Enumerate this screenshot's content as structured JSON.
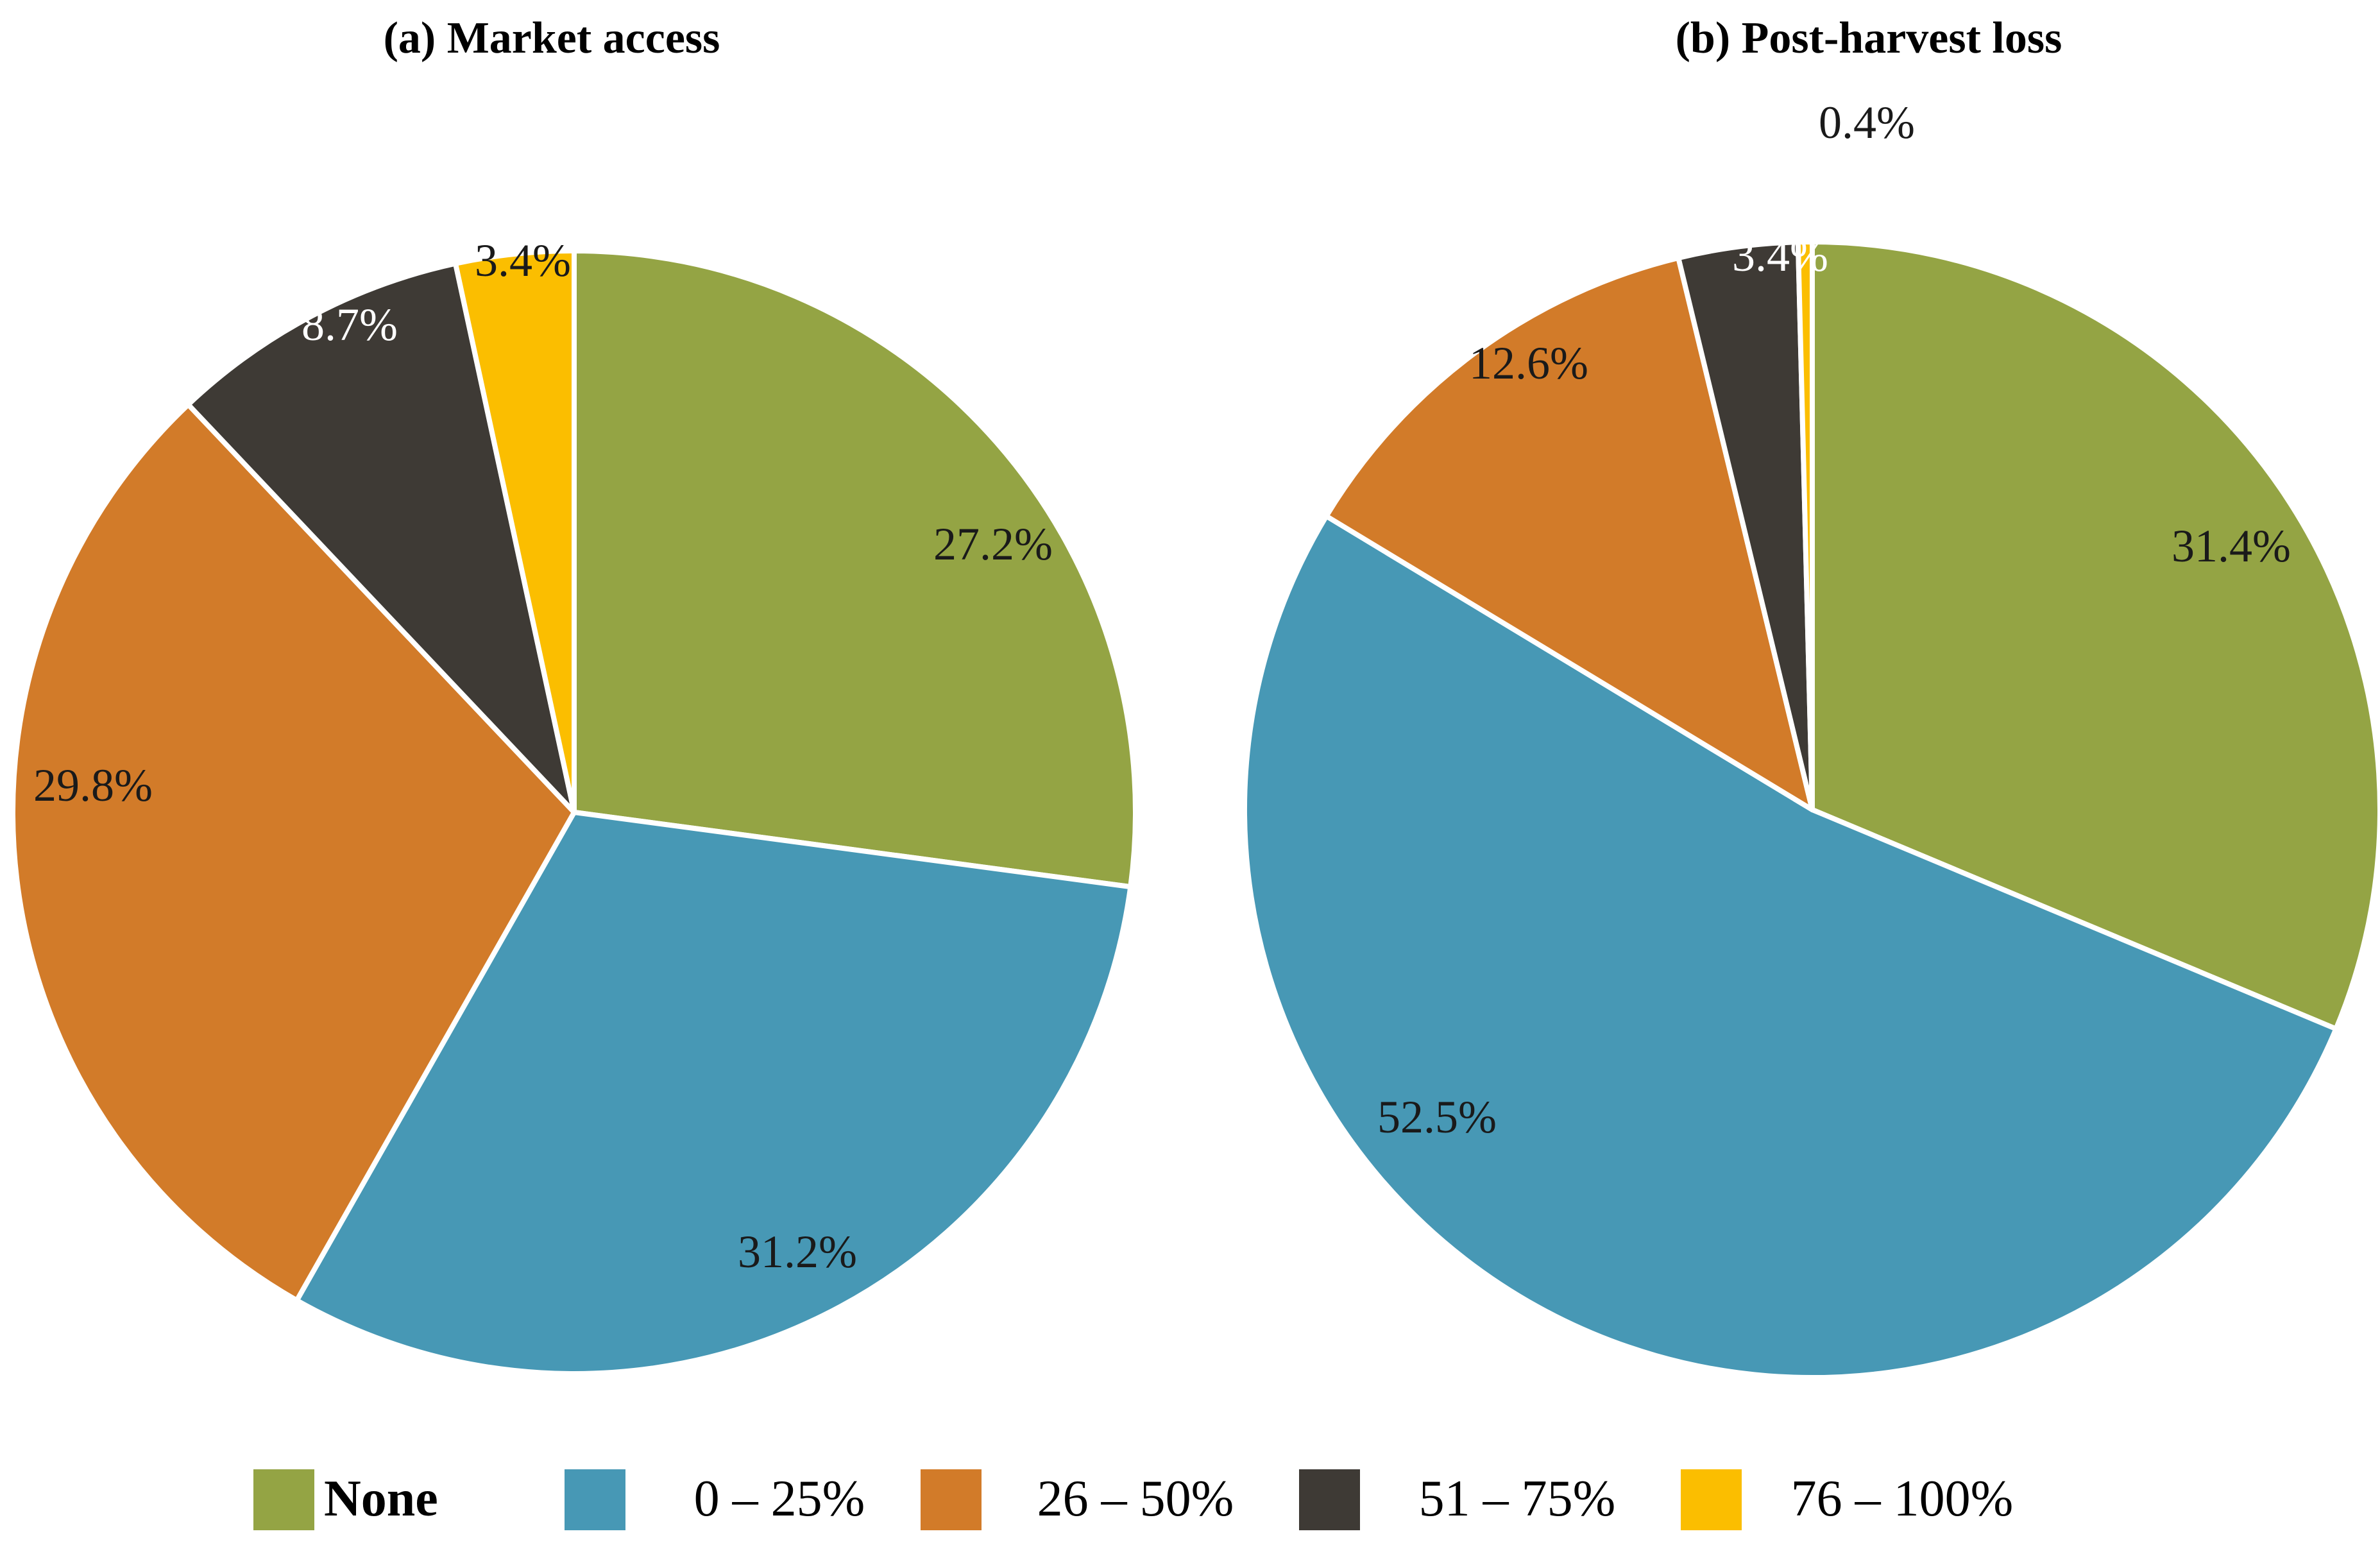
{
  "chart_data": [
    {
      "type": "pie",
      "title": "(a) Market access",
      "start_angle_deg": 0,
      "direction": "clockwise",
      "slices": [
        {
          "category": "None",
          "value": 27.2,
          "label": "27.2%",
          "label_color": "#1a1a1a"
        },
        {
          "category": "0 – 25%",
          "value": 31.2,
          "label": "31.2%",
          "label_color": "#1a1a1a"
        },
        {
          "category": "26 – 50%",
          "value": 29.8,
          "label": "29.8%",
          "label_color": "#1a1a1a"
        },
        {
          "category": "51 – 75%",
          "value": 8.7,
          "label": "8.7%",
          "label_color": "#ffffff"
        },
        {
          "category": "76 – 100%",
          "value": 3.4,
          "label": "3.4%",
          "label_color": "#1a1a1a"
        }
      ]
    },
    {
      "type": "pie",
      "title": "(b) Post-harvest loss",
      "start_angle_deg": 0,
      "direction": "clockwise",
      "slices": [
        {
          "category": "None",
          "value": 31.4,
          "label": "31.4%",
          "label_color": "#1a1a1a"
        },
        {
          "category": "0 – 25%",
          "value": 52.5,
          "label": "52.5%",
          "label_color": "#1a1a1a"
        },
        {
          "category": "26 – 50%",
          "value": 12.6,
          "label": "12.6%",
          "label_color": "#1a1a1a"
        },
        {
          "category": "51 – 75%",
          "value": 3.4,
          "label": "3.4%",
          "label_color": "#ffffff"
        },
        {
          "category": "76 – 100%",
          "value": 0.4,
          "label": "0.4%",
          "label_color": "#1a1a1a"
        }
      ]
    }
  ],
  "legend": {
    "position": "bottom",
    "items": [
      {
        "label": "None",
        "color": "#94a444"
      },
      {
        "label": "0 – 25%",
        "color": "#4798b5"
      },
      {
        "label": "26 – 50%",
        "color": "#d27b29"
      },
      {
        "label": "51 – 75%",
        "color": "#3e3a35"
      },
      {
        "label": "76 – 100%",
        "color": "#fbbe00"
      }
    ]
  }
}
